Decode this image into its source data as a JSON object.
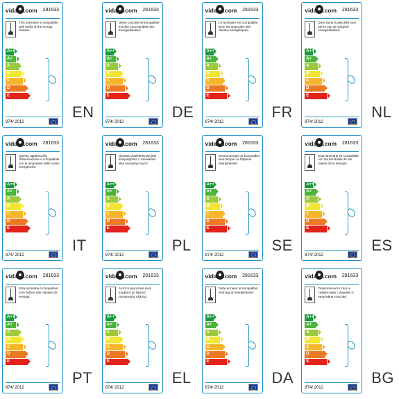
{
  "product_code": "281633",
  "logo_text_left": "vida",
  "logo_text_right": ".com",
  "regulation": "874/ 2012",
  "energy_classes": [
    {
      "label": "A++",
      "color": "#1a9a3c"
    },
    {
      "label": "A+",
      "color": "#4bb43a"
    },
    {
      "label": "A",
      "color": "#9cc83c"
    },
    {
      "label": "B",
      "color": "#f1e635"
    },
    {
      "label": "C",
      "color": "#f6b62c"
    },
    {
      "label": "D",
      "color": "#ec7a25"
    },
    {
      "label": "E",
      "color": "#e2231a"
    }
  ],
  "labels": [
    {
      "lang": "EN",
      "text": "This luminaire is compatible with bulbs of the energy classes:"
    },
    {
      "lang": "DE",
      "text": "Diese Leuchte ist kompatibel mit den Leuchtmitteln der Energieklassen:"
    },
    {
      "lang": "FR",
      "text": "Ce luminaire est compatible avec les ampoules des classes énergétiques:"
    },
    {
      "lang": "NL",
      "text": "Deze lamp is geschikt voor peren van de volgend energieklassen:"
    },
    {
      "lang": "IT",
      "text": "Questo apparecchio d'illuminazione è compatibile con le lampadine delle classi energetiche:"
    },
    {
      "lang": "PL",
      "text": "Oprawa oświetleniowa jest kompatybilna z żarówkami klas energetycznych:"
    },
    {
      "lang": "SE",
      "text": "Denna armatur är kompatibel med lampor av följande energiklasser:"
    },
    {
      "lang": "ES",
      "text": "Esta luminaria es compatible con las bombillas de las clases de la energía:"
    },
    {
      "lang": "PT",
      "text": "Esta luminária é compatível com bulbos das classes de energia:"
    },
    {
      "lang": "EL",
      "text": "Αυτό το φωτιστικό είναι συμβατό με λάμπες ενεργειακής κλάσης:"
    },
    {
      "lang": "DA",
      "text": "Dette armatur er kompatibel med løg af energiklasser:"
    },
    {
      "lang": "BG",
      "text": "Осветителното тяло е съвместимо с крушки от енергийни класове:"
    }
  ]
}
